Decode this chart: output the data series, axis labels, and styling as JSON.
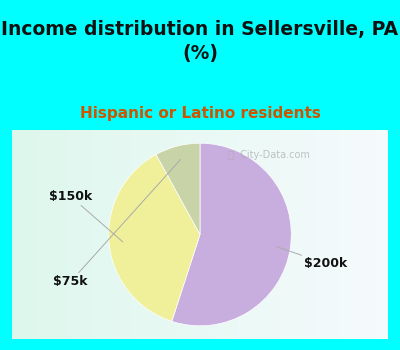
{
  "title": "Income distribution in Sellersville, PA\n(%)",
  "subtitle": "Hispanic or Latino residents",
  "slices": [
    {
      "label": "$200k",
      "value": 55,
      "color": "#c8aede"
    },
    {
      "label": "$150k",
      "value": 37,
      "color": "#f0f09a"
    },
    {
      "label": "$75k",
      "value": 8,
      "color": "#c8d4a8"
    }
  ],
  "start_angle": 90,
  "title_fontsize": 13.5,
  "subtitle_fontsize": 11,
  "label_fontsize": 9,
  "title_color": "#111111",
  "subtitle_color": "#cc5500",
  "label_color": "#111111",
  "bg_cyan": "#00ffff",
  "watermark": "City-Data.com",
  "label_positions": {
    "$200k": [
      1.38,
      -0.32
    ],
    "$150k": [
      -1.42,
      0.42
    ],
    "$75k": [
      -1.42,
      -0.52
    ]
  }
}
